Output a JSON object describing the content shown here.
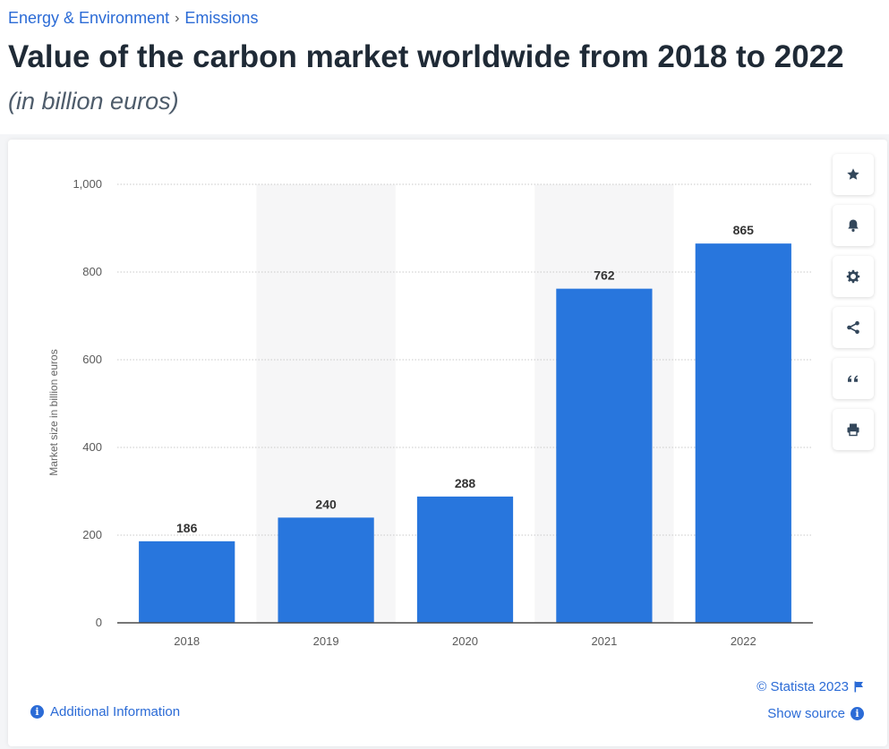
{
  "breadcrumb": {
    "parent": "Energy & Environment",
    "separator": "›",
    "current": "Emissions"
  },
  "header": {
    "title": "Value of the carbon market worldwide from 2018 to 2022",
    "subtitle": "(in billion euros)"
  },
  "toolbar": {
    "icons": [
      "star-icon",
      "bell-icon",
      "gear-icon",
      "share-icon",
      "quote-icon",
      "print-icon"
    ]
  },
  "footer": {
    "copyright": "© Statista 2023",
    "show_source": "Show source",
    "additional_info": "Additional Information"
  },
  "colors": {
    "bar": "#2876dd",
    "accent": "#2b6bd6",
    "band": "#f6f6f7",
    "grid": "#c9c9c9",
    "axis": "#4a4a4a"
  },
  "chart_data": {
    "type": "bar",
    "categories": [
      "2018",
      "2019",
      "2020",
      "2021",
      "2022"
    ],
    "values": [
      186,
      240,
      288,
      762,
      865
    ],
    "value_labels": [
      "186",
      "240",
      "288",
      "762",
      "865"
    ],
    "xlabel": "",
    "ylabel": "Market size in billion euros",
    "ylim": [
      0,
      1000
    ],
    "yticks": [
      0,
      200,
      400,
      600,
      800,
      1000
    ],
    "ytick_labels": [
      "0",
      "200",
      "400",
      "600",
      "800",
      "1,000"
    ],
    "grid": true,
    "legend": "none"
  }
}
